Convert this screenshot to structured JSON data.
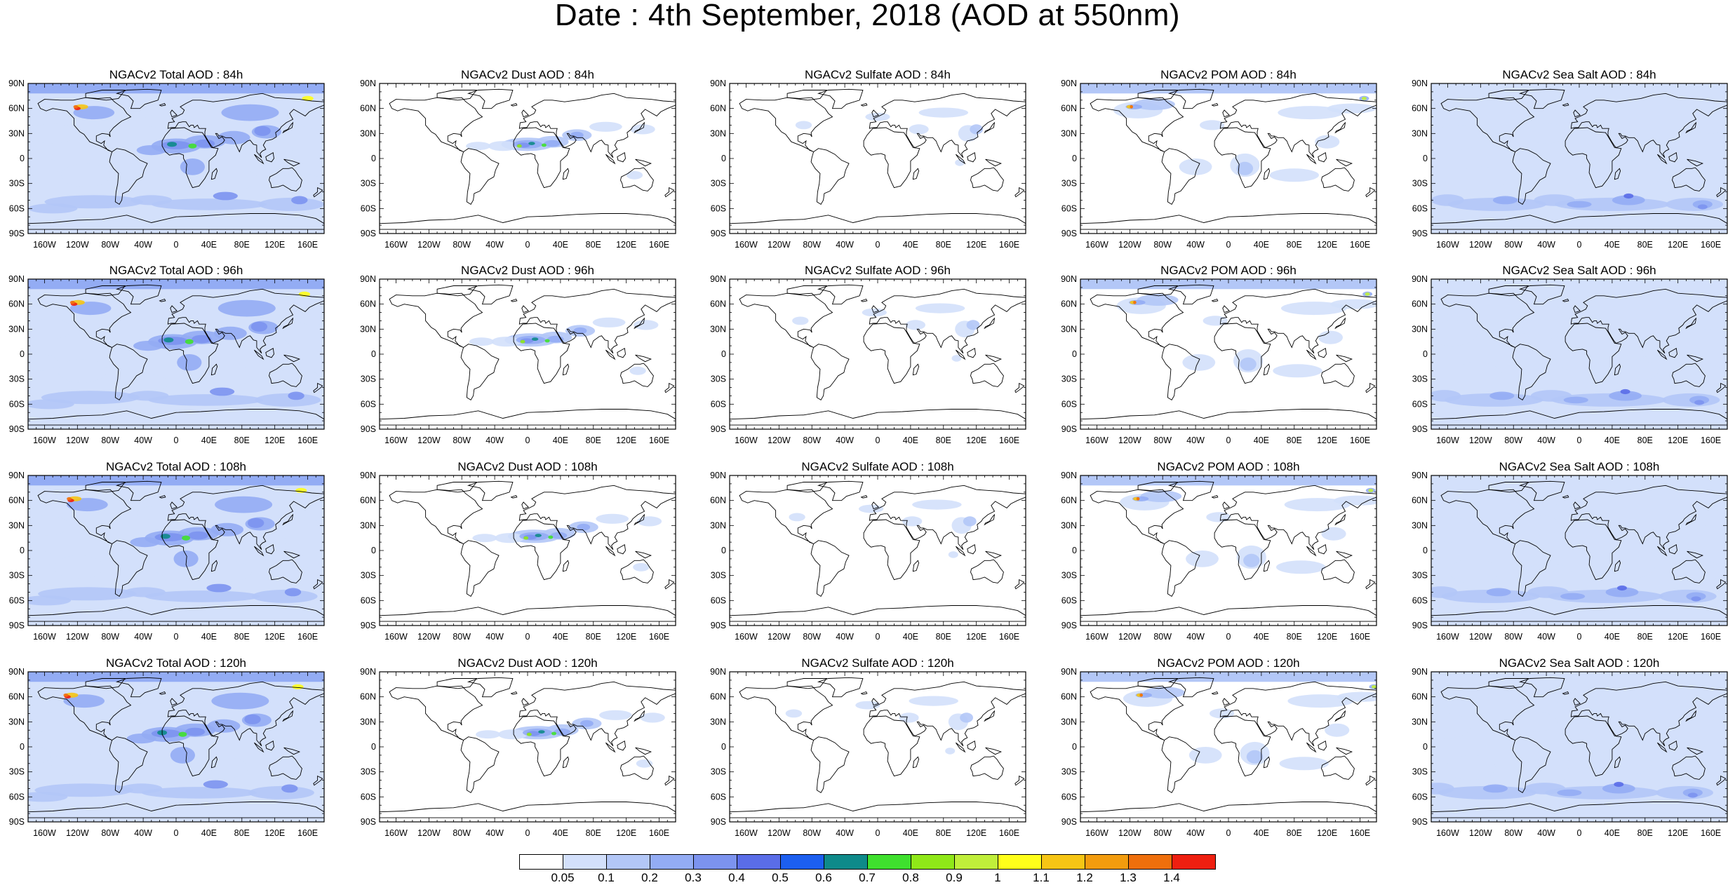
{
  "title": "Date : 4th September, 2018 (AOD at 550nm)",
  "axes": {
    "lat_labels": [
      "90N",
      "60N",
      "30N",
      "0",
      "30S",
      "60S",
      "90S"
    ],
    "lon_labels": [
      "160W",
      "120W",
      "80W",
      "40W",
      "0",
      "40E",
      "80E",
      "120E",
      "160E"
    ]
  },
  "panels": [
    [
      "NGACv2 Total AOD : 84h",
      "NGACv2 Dust AOD : 84h",
      "NGACv2 Sulfate AOD : 84h",
      "NGACv2 POM AOD : 84h",
      "NGACv2 Sea Salt AOD : 84h"
    ],
    [
      "NGACv2 Total AOD : 96h",
      "NGACv2 Dust AOD : 96h",
      "NGACv2 Sulfate AOD : 96h",
      "NGACv2 POM AOD : 96h",
      "NGACv2 Sea Salt AOD : 96h"
    ],
    [
      "NGACv2 Total AOD : 108h",
      "NGACv2 Dust AOD : 108h",
      "NGACv2 Sulfate AOD : 108h",
      "NGACv2 POM AOD : 108h",
      "NGACv2 Sea Salt AOD : 108h"
    ],
    [
      "NGACv2 Total AOD : 120h",
      "NGACv2 Dust AOD : 120h",
      "NGACv2 Sulfate AOD : 120h",
      "NGACv2 POM AOD : 120h",
      "NGACv2 Sea Salt  AOD : 120h"
    ]
  ],
  "colorbar": {
    "labels": [
      "0.05",
      "0.1",
      "0.2",
      "0.3",
      "0.4",
      "0.5",
      "0.6",
      "0.7",
      "0.8",
      "0.9",
      "1",
      "1.1",
      "1.2",
      "1.3",
      "1.4"
    ],
    "colors": [
      "#ffffff",
      "#d3e0fb",
      "#b3c7f7",
      "#93acf4",
      "#7c93ef",
      "#5a6de8",
      "#1c5ff0",
      "#0e8a8a",
      "#3fe02e",
      "#8fe818",
      "#c0ef3a",
      "#ffff1a",
      "#f6c514",
      "#f39c0e",
      "#ef6f0c",
      "#ef1f10"
    ]
  },
  "map_colors": {
    "land_outline": "#000000",
    "very_light": "#d3e0fb",
    "light": "#b3c7f7",
    "medium": "#93acf4",
    "strong": "#7c93ef",
    "intense": "#5a6de8"
  }
}
